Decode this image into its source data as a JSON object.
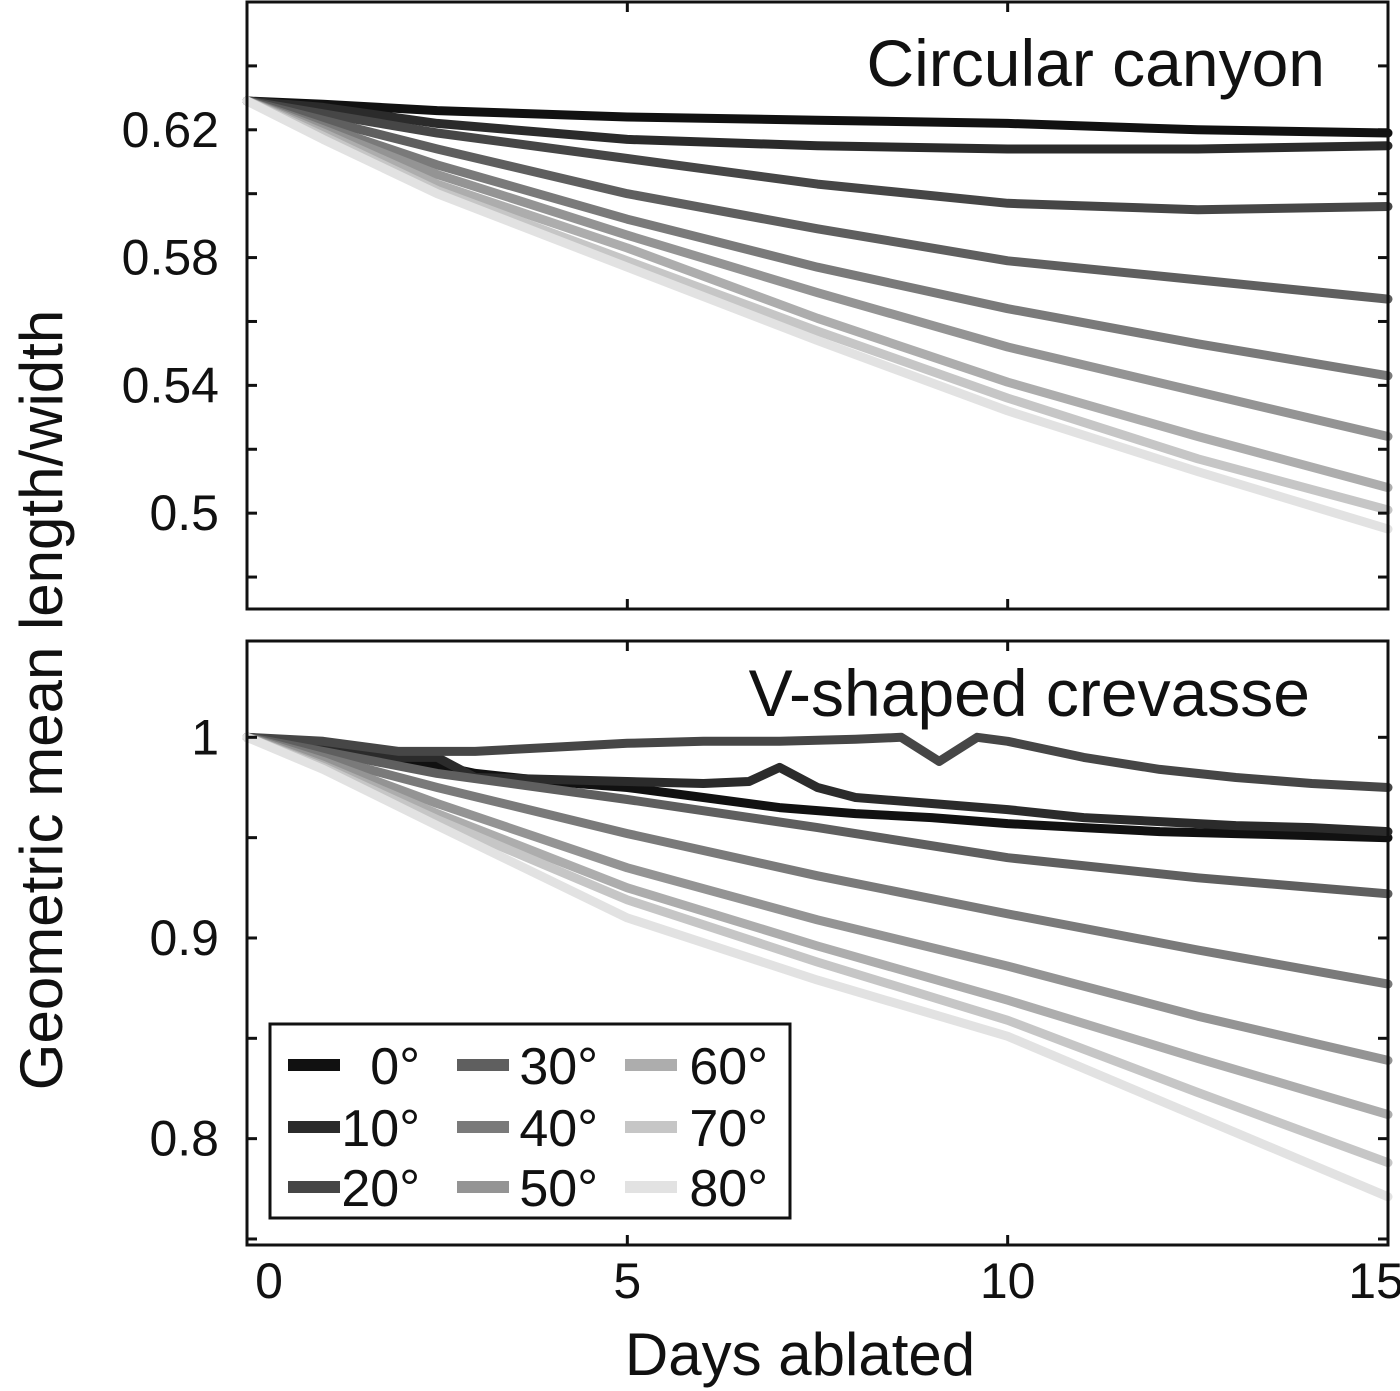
{
  "chart_data": {
    "type": "line",
    "xlabel": "Days ablated",
    "ylabel": "Geometric mean length/width",
    "xlim": [
      0,
      15
    ],
    "xticks": [
      "0",
      "5",
      "10",
      "15"
    ],
    "legend": {
      "placement": "bottom-left of lower panel",
      "entries": [
        "0°",
        "10°",
        "20°",
        "30°",
        "40°",
        "50°",
        "60°",
        "70°",
        "80°"
      ]
    },
    "colors": [
      "#111111",
      "#2b2b2b",
      "#464646",
      "#5f5f5f",
      "#7a7a7a",
      "#949494",
      "#adadad",
      "#c6c6c6",
      "#e2e2e2"
    ],
    "panels": [
      {
        "title": "Circular canyon",
        "ylim": [
          0.47,
          0.66
        ],
        "yticks": [
          "0.5",
          "0.54",
          "0.58",
          "0.62"
        ],
        "ytick_values": [
          0.5,
          0.54,
          0.58,
          0.62
        ],
        "series": [
          {
            "name": "0°",
            "x": [
              0,
              1,
              2.5,
              5,
              7.5,
              10,
              12.5,
              15
            ],
            "y": [
              0.629,
              0.628,
              0.626,
              0.624,
              0.623,
              0.622,
              0.62,
              0.619
            ]
          },
          {
            "name": "10°",
            "x": [
              0,
              1,
              2.5,
              5,
              7.5,
              10,
              12.5,
              15
            ],
            "y": [
              0.629,
              0.627,
              0.622,
              0.617,
              0.615,
              0.614,
              0.614,
              0.615
            ]
          },
          {
            "name": "20°",
            "x": [
              0,
              1,
              2.5,
              5,
              7.5,
              10,
              12.5,
              15
            ],
            "y": [
              0.629,
              0.625,
              0.619,
              0.611,
              0.603,
              0.597,
              0.595,
              0.596
            ]
          },
          {
            "name": "30°",
            "x": [
              0,
              1,
              2.5,
              5,
              7.5,
              10,
              12.5,
              15
            ],
            "y": [
              0.629,
              0.623,
              0.614,
              0.6,
              0.589,
              0.579,
              0.573,
              0.567
            ]
          },
          {
            "name": "40°",
            "x": [
              0,
              1,
              2.5,
              5,
              7.5,
              10,
              12.5,
              15
            ],
            "y": [
              0.629,
              0.621,
              0.609,
              0.592,
              0.577,
              0.564,
              0.553,
              0.543
            ]
          },
          {
            "name": "50°",
            "x": [
              0,
              1,
              2.5,
              5,
              7.5,
              10,
              12.5,
              15
            ],
            "y": [
              0.629,
              0.62,
              0.606,
              0.587,
              0.569,
              0.552,
              0.538,
              0.524
            ]
          },
          {
            "name": "60°",
            "x": [
              0,
              1,
              2.5,
              5,
              7.5,
              10,
              12.5,
              15
            ],
            "y": [
              0.629,
              0.619,
              0.603,
              0.583,
              0.561,
              0.541,
              0.524,
              0.508
            ]
          },
          {
            "name": "70°",
            "x": [
              0,
              1,
              2.5,
              5,
              7.5,
              10,
              12.5,
              15
            ],
            "y": [
              0.629,
              0.618,
              0.601,
              0.579,
              0.557,
              0.536,
              0.517,
              0.501
            ]
          },
          {
            "name": "80°",
            "x": [
              0,
              1,
              2.5,
              5,
              7.5,
              10,
              12.5,
              15
            ],
            "y": [
              0.629,
              0.617,
              0.6,
              0.577,
              0.554,
              0.532,
              0.513,
              0.495
            ]
          }
        ]
      },
      {
        "title": "V-shaped crevasse",
        "ylim": [
          0.747,
          1.048
        ],
        "yticks": [
          "0.8",
          "0.9",
          "1"
        ],
        "ytick_values": [
          0.8,
          0.9,
          1.0
        ],
        "series": [
          {
            "name": "0°",
            "x": [
              0,
              1,
              2,
              3,
              4,
              5,
              6,
              7,
              8,
              9,
              10,
              11,
              12,
              13,
              14,
              15
            ],
            "y": [
              1.0,
              0.997,
              0.99,
              0.982,
              0.978,
              0.975,
              0.97,
              0.965,
              0.962,
              0.96,
              0.957,
              0.955,
              0.953,
              0.952,
              0.951,
              0.95
            ]
          },
          {
            "name": "10°",
            "x": [
              0,
              1,
              2,
              2.5,
              3,
              4,
              5,
              6,
              6.6,
              7,
              7.5,
              8,
              9,
              10,
              11,
              12,
              13,
              14,
              15
            ],
            "y": [
              1.0,
              0.997,
              0.99,
              0.99,
              0.98,
              0.979,
              0.978,
              0.977,
              0.978,
              0.985,
              0.975,
              0.97,
              0.967,
              0.964,
              0.96,
              0.958,
              0.956,
              0.955,
              0.953
            ]
          },
          {
            "name": "20°",
            "x": [
              0,
              1,
              2,
              3,
              4,
              5,
              6,
              7,
              8,
              8.6,
              9.1,
              9.6,
              10,
              11,
              12,
              13,
              14,
              15
            ],
            "y": [
              1.0,
              0.998,
              0.993,
              0.993,
              0.995,
              0.997,
              0.998,
              0.998,
              0.999,
              1.0,
              0.988,
              1.0,
              0.998,
              0.99,
              0.984,
              0.98,
              0.977,
              0.975
            ]
          },
          {
            "name": "30°",
            "x": [
              0,
              1,
              2.5,
              5,
              7.5,
              10,
              12.5,
              15
            ],
            "y": [
              1.0,
              0.993,
              0.982,
              0.969,
              0.955,
              0.94,
              0.93,
              0.922
            ]
          },
          {
            "name": "40°",
            "x": [
              0,
              1,
              2.5,
              5,
              7.5,
              10,
              12.5,
              15
            ],
            "y": [
              1.0,
              0.99,
              0.975,
              0.952,
              0.931,
              0.912,
              0.894,
              0.877
            ]
          },
          {
            "name": "50°",
            "x": [
              0,
              1,
              2.5,
              5,
              7.5,
              10,
              12.5,
              15
            ],
            "y": [
              1.0,
              0.988,
              0.967,
              0.935,
              0.909,
              0.886,
              0.861,
              0.839
            ]
          },
          {
            "name": "60°",
            "x": [
              0,
              1,
              2.5,
              5,
              7.5,
              10,
              12.5,
              15
            ],
            "y": [
              1.0,
              0.986,
              0.962,
              0.925,
              0.896,
              0.869,
              0.84,
              0.812
            ]
          },
          {
            "name": "70°",
            "x": [
              0,
              1,
              2.5,
              5,
              7.5,
              10,
              12.5,
              15
            ],
            "y": [
              1.0,
              0.985,
              0.959,
              0.919,
              0.888,
              0.859,
              0.823,
              0.788
            ]
          },
          {
            "name": "80°",
            "x": [
              0,
              1,
              2.5,
              5,
              7.5,
              10,
              12.5,
              15
            ],
            "y": [
              1.0,
              0.984,
              0.956,
              0.91,
              0.879,
              0.851,
              0.811,
              0.771
            ]
          }
        ]
      }
    ]
  }
}
